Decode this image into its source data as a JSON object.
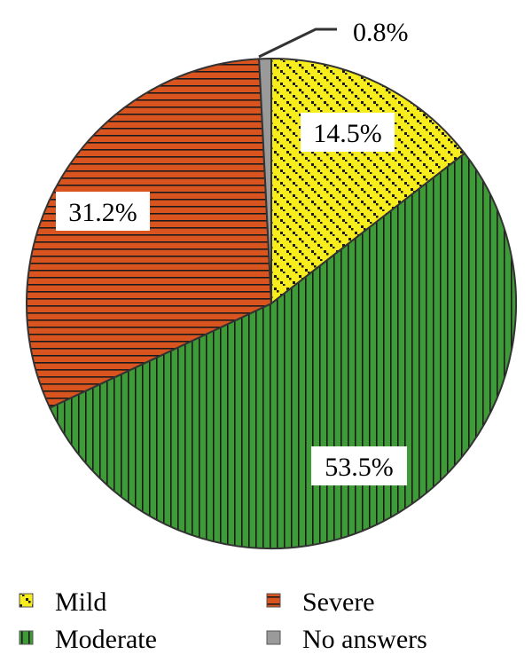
{
  "chart_data": {
    "type": "pie",
    "title": "",
    "slices": [
      {
        "name": "Mild",
        "value": 14.5,
        "label": "14.5%",
        "color": "#f7ec1c",
        "pattern": "dots"
      },
      {
        "name": "Moderate",
        "value": 53.5,
        "label": "53.5%",
        "color": "#3f9a38",
        "pattern": "vertical-lines"
      },
      {
        "name": "Severe",
        "value": 31.2,
        "label": "31.2%",
        "color": "#d9541e",
        "pattern": "horizontal-lines"
      },
      {
        "name": "No answers",
        "value": 0.8,
        "label": "0.8%",
        "color": "#9a9a9a",
        "pattern": "solid"
      }
    ],
    "legend": {
      "placement": "bottom",
      "entries": [
        "Mild",
        "Severe",
        "Moderate",
        "No answers"
      ]
    }
  }
}
